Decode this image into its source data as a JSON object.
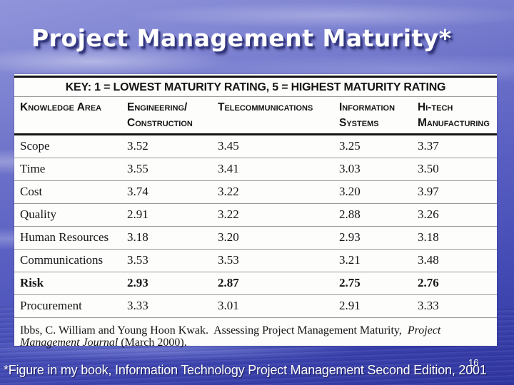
{
  "slide": {
    "title": "Project Management Maturity*",
    "slide_number": "16",
    "footnote": "*Figure in my book, Information Technology Project Management Second Edition, 2001"
  },
  "table": {
    "key": "KEY: 1 = LOWEST MATURITY RATING, 5 = HIGHEST MATURITY RATING",
    "columns": [
      "Knowledge Area",
      "Engineering/\nConstruction",
      "Telecommunications",
      "Information\nSystems",
      "Hi-tech\nManufacturing"
    ],
    "rows": [
      {
        "label": "Scope",
        "values": [
          "3.52",
          "3.45",
          "3.25",
          "3.37"
        ],
        "bold": false
      },
      {
        "label": "Time",
        "values": [
          "3.55",
          "3.41",
          "3.03",
          "3.50"
        ],
        "bold": false
      },
      {
        "label": "Cost",
        "values": [
          "3.74",
          "3.22",
          "3.20",
          "3.97"
        ],
        "bold": false
      },
      {
        "label": "Quality",
        "values": [
          "2.91",
          "3.22",
          "2.88",
          "3.26"
        ],
        "bold": false
      },
      {
        "label": "Human Resources",
        "values": [
          "3.18",
          "3.20",
          "2.93",
          "3.18"
        ],
        "bold": false
      },
      {
        "label": "Communications",
        "values": [
          "3.53",
          "3.53",
          "3.21",
          "3.48"
        ],
        "bold": false
      },
      {
        "label": "Risk",
        "values": [
          "2.93",
          "2.87",
          "2.75",
          "2.76"
        ],
        "bold": true
      },
      {
        "label": "Procurement",
        "values": [
          "3.33",
          "3.01",
          "2.91",
          "3.33"
        ],
        "bold": false
      }
    ],
    "citation": {
      "text1": "Ibbs, C. William and Young Hoon Kwak.  Assessing Project Management Maturity,  ",
      "italic": "Project Management Journal",
      "text2": " (March 2000)."
    }
  },
  "chart_data": {
    "type": "table",
    "title": "KEY: 1 = LOWEST MATURITY RATING, 5 = HIGHEST MATURITY RATING",
    "row_header": "Knowledge Area",
    "columns": [
      "Engineering/Construction",
      "Telecommunications",
      "Information Systems",
      "Hi-tech Manufacturing"
    ],
    "rows": [
      [
        "Scope",
        3.52,
        3.45,
        3.25,
        3.37
      ],
      [
        "Time",
        3.55,
        3.41,
        3.03,
        3.5
      ],
      [
        "Cost",
        3.74,
        3.22,
        3.2,
        3.97
      ],
      [
        "Quality",
        2.91,
        3.22,
        2.88,
        3.26
      ],
      [
        "Human Resources",
        3.18,
        3.2,
        2.93,
        3.18
      ],
      [
        "Communications",
        3.53,
        3.53,
        3.21,
        3.48
      ],
      [
        "Risk",
        2.93,
        2.87,
        2.75,
        2.76
      ],
      [
        "Procurement",
        3.33,
        3.01,
        2.91,
        3.33
      ]
    ]
  },
  "colors": {
    "sky_top": "#9094da",
    "sky_bottom": "#3036a0",
    "panel_background": "#fdfdfc",
    "table_rule_dark": "#141414",
    "table_rule_light": "#9a9a9a",
    "text_on_sky": "#ffffff",
    "text_on_panel": "#151515"
  }
}
